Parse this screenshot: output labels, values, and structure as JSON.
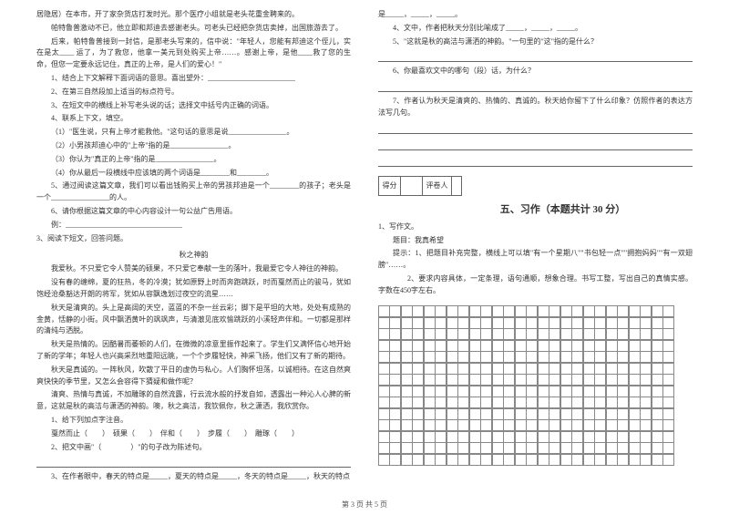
{
  "left": {
    "p1": "居隐居）在本市，开了家杂货店打发时光。那个医疗小组就是老头花重金聘来的。",
    "p2": "帕特鲁普激动不已，他立即和邦迪去感谢老头。可老头已经把杂货店卖掉，出国旅游去了。",
    "p3": "后来，帕特鲁普接到一封信，是那老头写来的，信中说：\"年轻人，您能有邦迪这个侄儿，实在是太____ 运了，为了救您，他拿一美元到处购买上帝……。感谢上帝，是他____救了您的生命，但您一定要永远记住，真正的上帝，是人们的爱心！\"",
    "q1": "1、结合上下文解释下面词语的意思。喜出望外：________________________",
    "q2": "2、在第三自然段加上适当的标点符号。",
    "q3": "3、在短文中的横线上补写老头说的话；选择文中括号内正确的词语。",
    "q4": "4、联系上下文，填空。",
    "q4a": "（1）\"医生说，只有上帝才能救他。\"这句话的意思是说________________。",
    "q4b": "（2）小男孩邦迪心中的\"上帝\"指的是________________。",
    "q4c": "（3）你认为\"真正的上帝\"指的是________________。",
    "q4d": "（4）你从最后一段横线中应该填的两个词语是________和________。",
    "q5": "5、通过阅读这篇文章，我们可以看出钱购买上帝的男孩邦迪是一个________的孩子；老头是一个________________的人。",
    "q6": "6、请你根据这篇文章的中心内容设计一句公益广告用语。",
    "q6a": "例：________________________________",
    "q7": "3、阅读下短文，回答问题。",
    "title": "秋之神韵",
    "a1": "我爱秋。不只爱它令人赞美的硕果，不只爱它奉献一生的落叶，我最爱它令人神往的神韵。",
    "a2": "没有春的缠绵，夏的狂热，冬的冷漠；犹如原野上时而奔跑跳跃，时而戛然而止的骏马，犹如饱经沧桑豁达开朗的将军，犹如从容飘逸划过夜空的流星……",
    "a3": "秋天是清爽的。头上是高阔的天空，蓝蓝的不杂一丝云彩；脚下是平坦的大地，处处有成熟的金黄，恬静的小街。风中飘洒黄叶的飒飒声，与清澈见底欢愉跳跃的小溪轻声伴和。一切都是那样的清纯与洒脱。",
    "a4": "秋天是热情的。因酷暑而萎顿的人们，在微微的凉意里振作起来了。学生们又满怀信心地开始了新的学年；年轻人也兴高采烈地重阳远眺，一个个步履轻快，神采飞扬，他们又有了新的期待。",
    "a5": "秋天是真诚的。一阵秋风，吹散了平日的虚伪与私心。人们胸怀坦荡，以诚相待。在这自然爽爽快快的季节里，又怎么会容得下猜疑和做作呢？",
    "a6": "清爽、热情与真诚，不加雕琢的自然流露，行云流水般的抒发自如，透露出一种沁人心脾的新意，这就是秋的高洁与潇洒的神韵。噢，秋之高洁，我钦佩你，秋之潇洒，我欣赏你。",
    "b1": "1、给下列加点字注音。",
    "b1a": "戛然而止（　　）　硕果（　　）　伴和（　　）　步履（　　）　雕琢（　　）",
    "b2": "2、把文中画\"（　　　　）\"的句子改为陈述句。",
    "b3": "3、在作者眼中，春天的特点是_____，夏天的特点是_____，冬天的特点是_____，秋天的特点"
  },
  "right": {
    "r1": "是_____，_____，_____。",
    "r2": "4、文中，作者把秋天分别比喻成了_____，_____，_____。",
    "r3": "5、\"这就是秋的高洁与潇洒的神韵。\"一句里的\"这\"指的是什么？",
    "r4": "6、你最喜欢文中的哪句（段）话，为什么？",
    "r5": "7、作者认为秋天是清爽的、热情的、真诚的。秋天给你留下了什么印象？仿照作者的表达方法写几句。",
    "scoreLabel1": "得分",
    "scoreLabel2": "评卷人",
    "secTitle": "五、习作（本题共计 30 分）",
    "w1": "1、写作文。",
    "w2": "题目：我真希望",
    "w3": "提示：1、把题目补充完整，横线上可以填\"有一个星期八\"\"书包轻一点\"\"拥抱妈妈\"\"有一双翅膀\"……。",
    "w4": "2、要求内容具体，一定条理，语句通顺，想象合理。书写工整，写出自己的真情实感。字数在450字左右。"
  },
  "footer": "第 3 页 共 5 页",
  "grid": {
    "rows": 14,
    "cols": 26
  }
}
